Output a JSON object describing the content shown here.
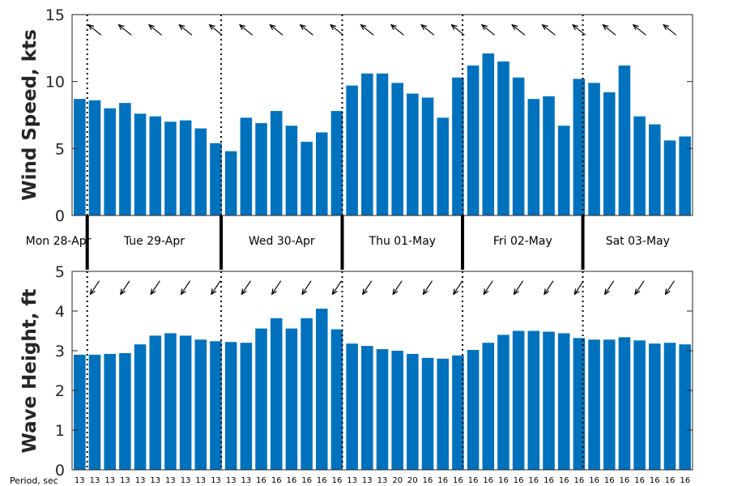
{
  "chart_data": [
    {
      "type": "bar",
      "ylabel": "Wind Speed, kts",
      "ylim": [
        0,
        15
      ],
      "yticks": [
        0,
        5,
        10,
        15
      ],
      "bar_color": "#0072bd",
      "values": [
        8.7,
        8.6,
        8.0,
        8.4,
        7.6,
        7.4,
        7.0,
        7.1,
        6.5,
        5.4,
        4.8,
        7.3,
        6.9,
        7.8,
        6.7,
        5.5,
        6.2,
        7.8,
        9.7,
        10.6,
        10.6,
        9.9,
        9.1,
        8.8,
        7.3,
        10.3,
        11.2,
        12.1,
        11.5,
        10.3,
        8.7,
        8.9,
        6.7,
        10.2,
        9.9,
        9.2,
        11.2,
        7.4,
        6.8,
        5.6,
        5.9
      ],
      "direction_arrows": true
    },
    {
      "type": "bar",
      "ylabel": "Wave Height, ft",
      "ylim": [
        0,
        5
      ],
      "yticks": [
        0,
        1,
        2,
        3,
        4,
        5
      ],
      "bar_color": "#0072bd",
      "values": [
        2.9,
        2.9,
        2.92,
        2.94,
        3.16,
        3.38,
        3.44,
        3.38,
        3.28,
        3.24,
        3.22,
        3.2,
        3.56,
        3.82,
        3.56,
        3.82,
        4.06,
        3.54,
        3.18,
        3.12,
        3.04,
        3.0,
        2.92,
        2.82,
        2.8,
        2.88,
        3.02,
        3.2,
        3.4,
        3.5,
        3.5,
        3.48,
        3.44,
        3.32,
        3.28,
        3.28,
        3.34,
        3.26,
        3.18,
        3.2,
        3.16
      ],
      "direction_arrows": true
    }
  ],
  "days": [
    "Mon 28-Apr",
    "Tue 29-Apr",
    "Wed 30-Apr",
    "Thu 01-May",
    "Fri 02-May",
    "Sat 03-May"
  ],
  "period_title": "Period, sec",
  "periods": [
    "13",
    "13",
    "13",
    "13",
    "13",
    "13",
    "13",
    "13",
    "13",
    "13",
    "13",
    "13",
    "16",
    "16",
    "16",
    "16",
    "16",
    "16",
    "13",
    "13",
    "13",
    "20",
    "20",
    "16",
    "16",
    "16",
    "16",
    "16",
    "16",
    "16",
    "16",
    "16",
    "16",
    "16",
    "16",
    "16",
    "16",
    "16",
    "16",
    "16",
    "16"
  ]
}
